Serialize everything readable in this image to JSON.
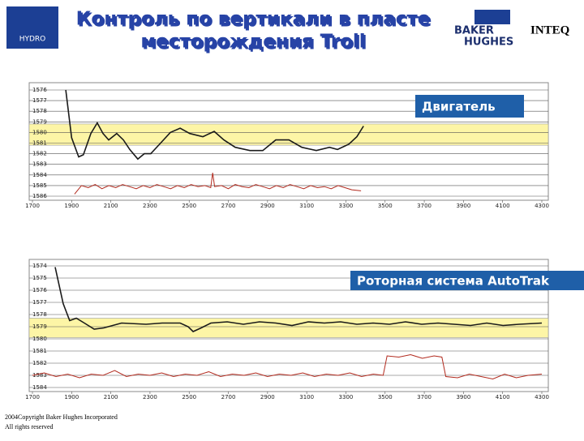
{
  "header": {
    "title": [
      "Контроль по вертикали в пласте",
      "месторождения Troll"
    ],
    "logo_left": "HYDRO",
    "logo_right": [
      "BAKER",
      "HUGHES"
    ],
    "brand": "INTEQ"
  },
  "chart_data": [
    {
      "type": "line",
      "annotation": "Двигатель",
      "xlim": [
        1700,
        4300
      ],
      "xticks": [
        1700,
        1900,
        2100,
        2300,
        2500,
        2700,
        2900,
        3100,
        3300,
        3500,
        3700,
        3900,
        4100,
        4300
      ],
      "ylim": [
        1586,
        1576
      ],
      "yticks": [
        1576,
        1577,
        1578,
        1579,
        1580,
        1581,
        1582,
        1583,
        1584,
        1585,
        1586
      ],
      "grid": true,
      "band": [
        1579.2,
        1581.2
      ],
      "band_color": "#fdf5a6",
      "series": [
        {
          "color": "#1a1a1a",
          "x": [
            1870,
            1900,
            1936,
            1960,
            1998,
            2031,
            2060,
            2089,
            2130,
            2164,
            2197,
            2238,
            2271,
            2304,
            2354,
            2404,
            2454,
            2503,
            2570,
            2628,
            2677,
            2735,
            2810,
            2876,
            2942,
            3009,
            3075,
            3149,
            3216,
            3257,
            3315,
            3356,
            3390
          ],
          "values": [
            1576,
            1580.5,
            1582.3,
            1582.1,
            1580.1,
            1579.1,
            1580.1,
            1580.7,
            1580.1,
            1580.7,
            1581.6,
            1582.5,
            1582.0,
            1582.0,
            1581.0,
            1580.0,
            1579.6,
            1580.1,
            1580.4,
            1579.9,
            1580.7,
            1581.4,
            1581.7,
            1581.7,
            1580.7,
            1580.7,
            1581.4,
            1581.7,
            1581.4,
            1581.6,
            1581.1,
            1580.4,
            1579.4
          ]
        },
        {
          "color": "#b22a1e",
          "x": [
            1915,
            1950,
            1985,
            2020,
            2055,
            2090,
            2125,
            2160,
            2195,
            2230,
            2265,
            2300,
            2335,
            2370,
            2405,
            2440,
            2475,
            2510,
            2545,
            2580,
            2610,
            2620,
            2630,
            2665,
            2700,
            2735,
            2770,
            2805,
            2840,
            2875,
            2910,
            2945,
            2980,
            3015,
            3050,
            3085,
            3120,
            3155,
            3190,
            3225,
            3260,
            3295,
            3330,
            3377
          ],
          "values": [
            1585.8,
            1585.0,
            1585.2,
            1584.9,
            1585.3,
            1585.0,
            1585.2,
            1584.9,
            1585.1,
            1585.3,
            1585.0,
            1585.2,
            1584.9,
            1585.1,
            1585.3,
            1585.0,
            1585.2,
            1584.9,
            1585.1,
            1585.0,
            1585.2,
            1583.8,
            1585.1,
            1585.0,
            1585.3,
            1584.9,
            1585.1,
            1585.2,
            1584.9,
            1585.1,
            1585.3,
            1585.0,
            1585.2,
            1584.9,
            1585.1,
            1585.3,
            1585.0,
            1585.2,
            1585.1,
            1585.3,
            1585.0,
            1585.2,
            1585.4,
            1585.5
          ]
        }
      ]
    },
    {
      "type": "line",
      "annotation": "Роторная система AutoTrak",
      "xlim": [
        1700,
        4300
      ],
      "xticks": [
        1700,
        1900,
        2100,
        2300,
        2500,
        2700,
        2900,
        3100,
        3300,
        3500,
        3700,
        3900,
        4100,
        4300
      ],
      "ylim": [
        1584,
        1574
      ],
      "yticks": [
        1574,
        1575,
        1576,
        1577,
        1578,
        1579,
        1580,
        1581,
        1582,
        1583,
        1584
      ],
      "grid": true,
      "band": [
        1578.3,
        1579.9
      ],
      "band_color": "#fdf5a6",
      "series": [
        {
          "color": "#1a1a1a",
          "x": [
            1816,
            1857,
            1890,
            1924,
            1965,
            2015,
            2064,
            2155,
            2280,
            2362,
            2454,
            2495,
            2520,
            2561,
            2611,
            2694,
            2777,
            2859,
            2942,
            3025,
            3108,
            3190,
            3273,
            3356,
            3439,
            3522,
            3604,
            3687,
            3770,
            3853,
            3936,
            4019,
            4102,
            4184,
            4300
          ],
          "values": [
            1574.1,
            1577.1,
            1578.5,
            1578.3,
            1578.7,
            1579.2,
            1579.1,
            1578.7,
            1578.8,
            1578.7,
            1578.7,
            1579.0,
            1579.4,
            1579.1,
            1578.7,
            1578.6,
            1578.8,
            1578.6,
            1578.7,
            1578.9,
            1578.6,
            1578.7,
            1578.6,
            1578.8,
            1578.7,
            1578.8,
            1578.6,
            1578.8,
            1578.7,
            1578.8,
            1578.9,
            1578.7,
            1578.9,
            1578.8,
            1578.7
          ]
        },
        {
          "color": "#b22a1e",
          "x": [
            1700,
            1760,
            1820,
            1880,
            1940,
            2000,
            2060,
            2120,
            2180,
            2240,
            2300,
            2360,
            2420,
            2480,
            2540,
            2600,
            2660,
            2720,
            2780,
            2840,
            2900,
            2960,
            3020,
            3080,
            3140,
            3200,
            3260,
            3320,
            3380,
            3440,
            3490,
            3510,
            3570,
            3630,
            3690,
            3750,
            3790,
            3810,
            3870,
            3930,
            3990,
            4050,
            4110,
            4170,
            4230,
            4300
          ],
          "values": [
            1583.0,
            1582.8,
            1583.1,
            1582.9,
            1583.2,
            1582.9,
            1583.0,
            1582.6,
            1583.1,
            1582.9,
            1583.0,
            1582.8,
            1583.1,
            1582.9,
            1583.0,
            1582.7,
            1583.1,
            1582.9,
            1583.0,
            1582.8,
            1583.1,
            1582.9,
            1583.0,
            1582.8,
            1583.1,
            1582.9,
            1583.0,
            1582.8,
            1583.1,
            1582.9,
            1583.0,
            1581.4,
            1581.5,
            1581.3,
            1581.6,
            1581.4,
            1581.5,
            1583.1,
            1583.2,
            1582.9,
            1583.1,
            1583.3,
            1582.9,
            1583.2,
            1583.0,
            1582.9
          ]
        }
      ]
    }
  ],
  "footer": [
    "2004Copyright Baker Hughes Incorporated",
    "All rights reserved"
  ]
}
